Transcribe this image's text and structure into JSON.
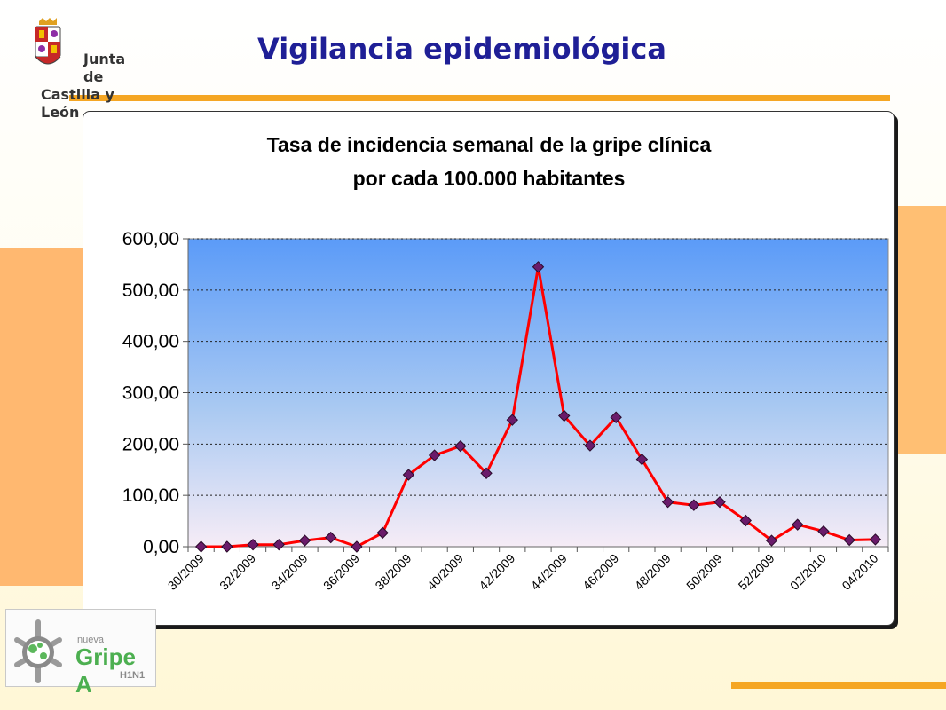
{
  "page": {
    "title": "Vigilancia epidemiológica"
  },
  "logo": {
    "line1": "Junta de",
    "line2": "Castilla y León"
  },
  "gripe_logo": {
    "small": "nueva",
    "main": "Gripe A",
    "sub": "H1N1"
  },
  "colors": {
    "title": "#1f1f96",
    "accent_orange": "#f5a623",
    "line": "#ff0000",
    "marker": "#6a1b6a",
    "plot_top": "#5b9bf8",
    "plot_bottom": "#f6ecf6"
  },
  "chart_data": {
    "type": "line",
    "title_line1": "Tasa de incidencia semanal de la gripe clínica",
    "title_line2": "por cada 100.000 habitantes",
    "xlabel": "",
    "ylabel": "",
    "ylim": [
      0,
      600
    ],
    "yticks": [
      "0,00",
      "100,00",
      "200,00",
      "300,00",
      "400,00",
      "500,00",
      "600,00"
    ],
    "grid": true,
    "legend": "none",
    "x_tick_labels": [
      "30/2009",
      "32/2009",
      "34/2009",
      "36/2009",
      "38/2009",
      "40/2009",
      "42/2009",
      "44/2009",
      "46/2009",
      "48/2009",
      "50/2009",
      "52/2009",
      "02/2010",
      "04/2010"
    ],
    "series": [
      {
        "values": [
          0,
          0,
          4,
          4,
          12,
          18,
          0,
          27,
          140,
          178,
          196,
          143,
          247,
          545,
          255,
          197,
          252,
          170,
          87,
          81,
          87,
          51,
          12,
          43,
          30,
          13,
          14
        ]
      }
    ]
  }
}
